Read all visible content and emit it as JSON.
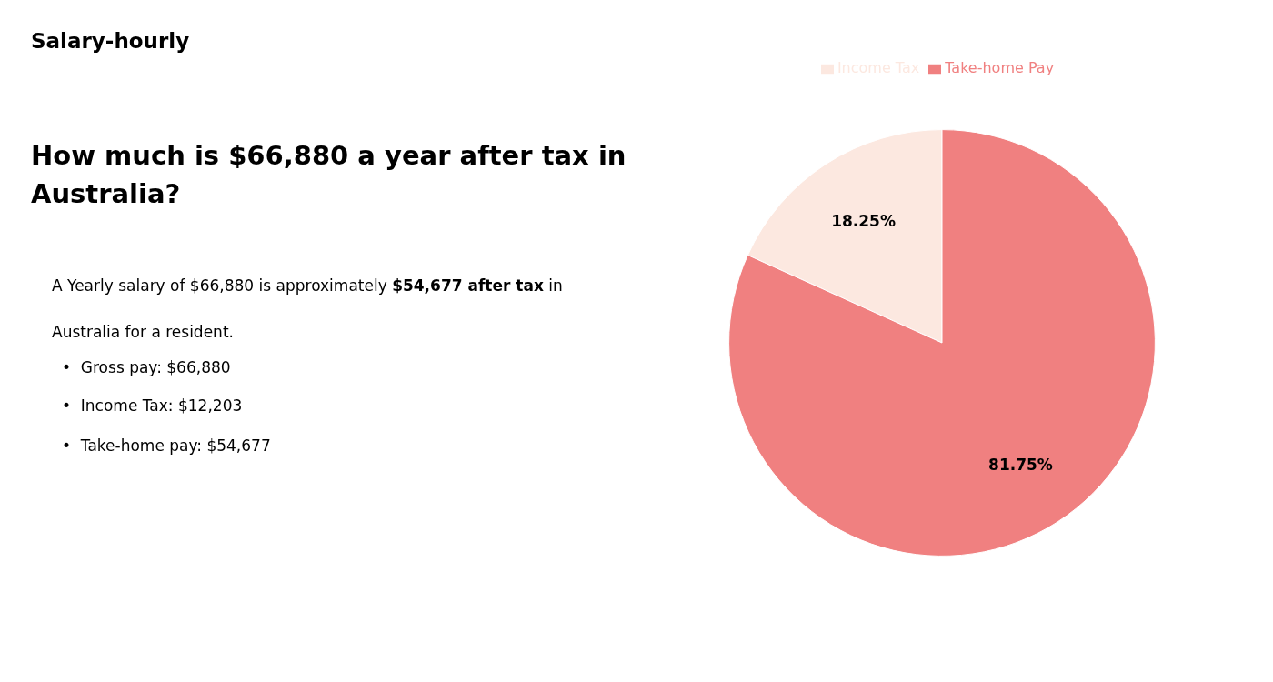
{
  "chart_data": {
    "type": "pie",
    "title": "How much is $66,880 a year after tax in\nAustralia?",
    "categories": [
      "Income Tax",
      "Take-home Pay"
    ],
    "values": [
      18.25,
      81.75
    ],
    "value_labels": [
      "18.25%",
      "81.75%"
    ],
    "colors": [
      "#fce8e0",
      "#f08080"
    ],
    "data_labels": true,
    "legend": "top",
    "annotations": [
      "S",
      "alary-hourly",
      "A Yearly salary of $66,880 is approximately ",
      "$54,677 after tax",
      " in",
      "Australia for a resident.",
      "•  Gross pay: $66,880",
      "•  Income Tax: $12,203",
      "•  Take-home pay: $54,677"
    ]
  }
}
